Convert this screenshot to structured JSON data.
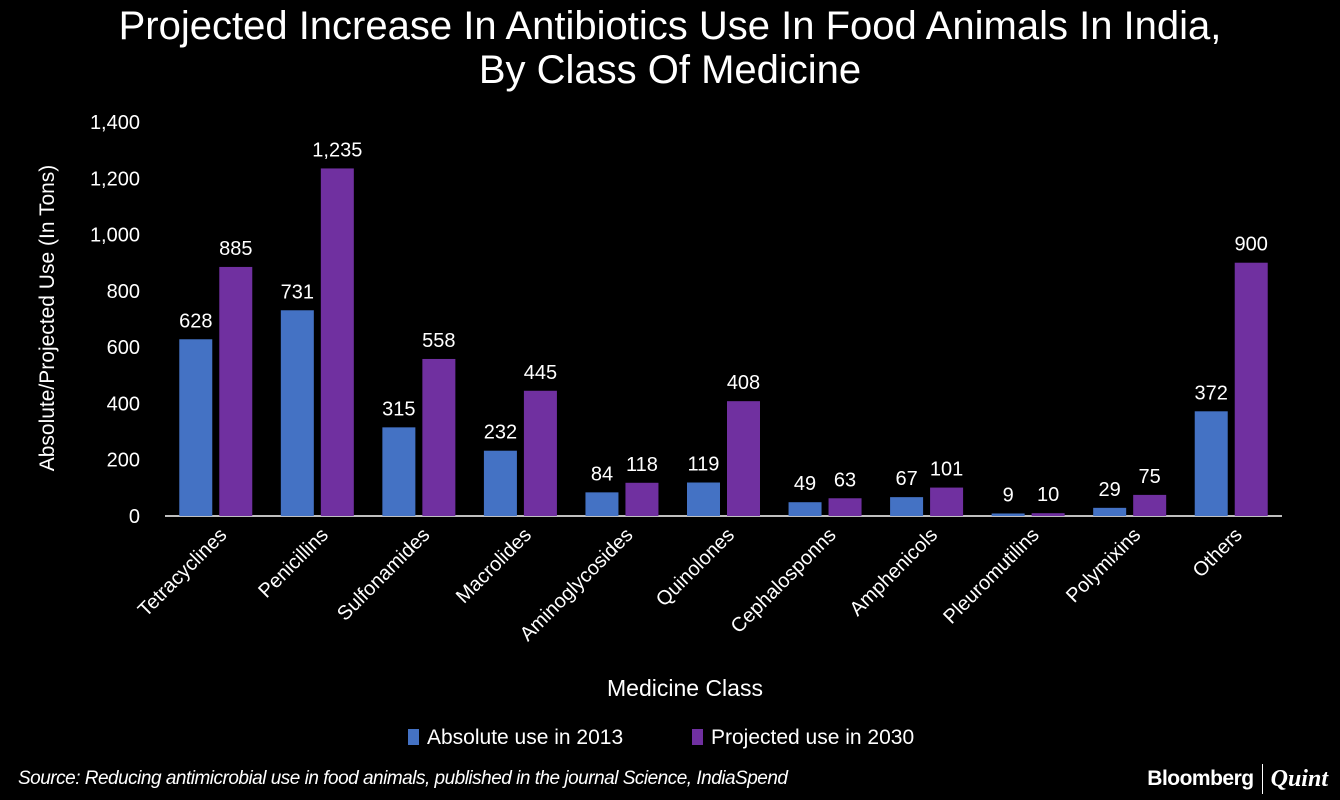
{
  "chart_data": {
    "type": "bar",
    "title": "Projected Increase In Antibiotics Use In Food Animals In India, By Class Of Medicine",
    "title_lines": [
      "Projected Increase In Antibiotics Use In Food Animals In India,",
      "By Class Of Medicine"
    ],
    "xlabel": "Medicine Class",
    "ylabel": "Absolute/Projected Use (In Tons)",
    "ylim": [
      0,
      1400
    ],
    "yticks": [
      0,
      200,
      400,
      600,
      800,
      1000,
      1200,
      1400
    ],
    "ytick_labels": [
      "0",
      "200",
      "400",
      "600",
      "800",
      "1,000",
      "1,200",
      "1,400"
    ],
    "grid": false,
    "legend_position": "bottom",
    "categories": [
      "Tetracyclines",
      "Penicillins",
      "Sulfonamides",
      "Macrolides",
      "Aminoglycosides",
      "Quinolones",
      "Cephalosponns",
      "Amphenicols",
      "Pleuromutilins",
      "Polymixins",
      "Others"
    ],
    "series": [
      {
        "name": "Absolute use in 2013",
        "color": "#4472c4",
        "values": [
          628,
          731,
          315,
          232,
          84,
          119,
          49,
          67,
          9,
          29,
          372
        ],
        "labels": [
          "628",
          "731",
          "315",
          "232",
          "84",
          "119",
          "49",
          "67",
          "9",
          "29",
          "372"
        ]
      },
      {
        "name": "Projected use in 2030",
        "color": "#7030a0",
        "values": [
          885,
          1235,
          558,
          445,
          118,
          408,
          63,
          101,
          10,
          75,
          900
        ],
        "labels": [
          "885",
          "1,235",
          "558",
          "445",
          "118",
          "408",
          "63",
          "101",
          "10",
          "75",
          "900"
        ]
      }
    ]
  },
  "footer": {
    "source": "Source: Reducing antimicrobial use in food animals, published in the journal Science, IndiaSpend",
    "brand_left": "Bloomberg",
    "brand_right": "Quint"
  }
}
